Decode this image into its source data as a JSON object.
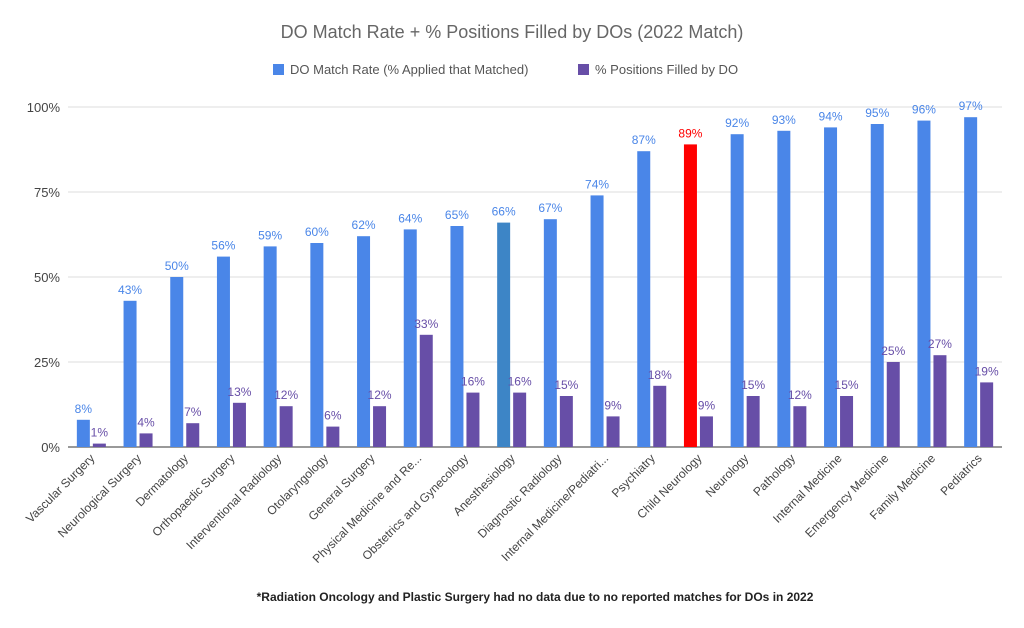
{
  "chart_data": {
    "type": "bar",
    "title": "DO Match Rate + % Positions Filled by DOs (2022 Match)",
    "footnote": "*Radiation Oncology and Plastic Surgery had no data due to no reported matches for DOs in 2022",
    "categories": [
      "Vascular Surgery",
      "Neurological Surgery",
      "Dermatology",
      "Orthopaedic Surgery",
      "Interventional Radiology",
      "Otolaryngology",
      "General Surgery",
      "Physical Medicine and Re...",
      "Obstetrics and Gynecology",
      "Anesthesiology",
      "Diagnostic Radiology",
      "Internal Medicine/Pediatri...",
      "Psychiatry",
      "Child Neurology",
      "Neurology",
      "Pathology",
      "Internal Medicine",
      "Emergency Medicine",
      "Family Medicine",
      "Pediatrics"
    ],
    "series": [
      {
        "name": "DO Match Rate (% Applied that Matched)",
        "color": "#4A86E8",
        "values": [
          8,
          43,
          50,
          56,
          59,
          60,
          62,
          64,
          65,
          66,
          67,
          74,
          87,
          89,
          92,
          93,
          94,
          95,
          96,
          97
        ],
        "labels": [
          "8%",
          "43%",
          "50%",
          "56%",
          "59%",
          "60%",
          "62%",
          "64%",
          "65%",
          "66%",
          "67%",
          "74%",
          "87%",
          "89%",
          "92%",
          "93%",
          "94%",
          "95%",
          "96%",
          "97%"
        ]
      },
      {
        "name": "% Positions Filled by DO",
        "color": "#674EA7",
        "values": [
          1,
          4,
          7,
          13,
          12,
          6,
          12,
          33,
          16,
          16,
          15,
          9,
          18,
          9,
          15,
          12,
          15,
          25,
          27,
          19
        ],
        "labels": [
          "1%",
          "4%",
          "7%",
          "13%",
          "12%",
          "6%",
          "12%",
          "33%",
          "16%",
          "16%",
          "15%",
          "9%",
          "18%",
          "9%",
          "15%",
          "12%",
          "15%",
          "25%",
          "27%",
          "19%"
        ]
      }
    ],
    "highlights": [
      {
        "category_index": 9,
        "series_index": 0,
        "color": "#3D85C6"
      },
      {
        "category_index": 13,
        "series_index": 0,
        "color": "#FF0000",
        "label_color": "#FF0000"
      }
    ],
    "yticks": [
      "0%",
      "25%",
      "50%",
      "75%",
      "100%"
    ],
    "ytick_values": [
      0,
      25,
      50,
      75,
      100
    ],
    "ylim": [
      0,
      100
    ],
    "grid": true,
    "legend_position": "top"
  }
}
